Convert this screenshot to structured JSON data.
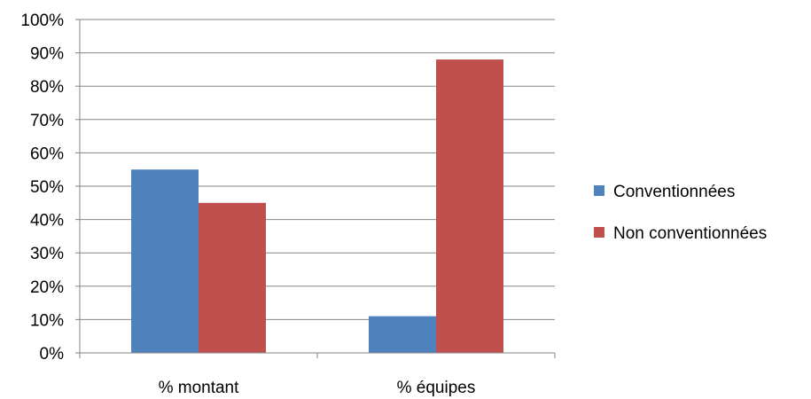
{
  "chart_data": {
    "type": "bar",
    "categories": [
      "% montant",
      "% équipes"
    ],
    "series": [
      {
        "name": "Conventionnées",
        "values": [
          55,
          11
        ],
        "color": "#4f81bd"
      },
      {
        "name": "Non conventionnées",
        "values": [
          45,
          88
        ],
        "color": "#c0504d"
      }
    ],
    "yticks": [
      "0%",
      "10%",
      "20%",
      "30%",
      "40%",
      "50%",
      "60%",
      "70%",
      "80%",
      "90%",
      "100%"
    ],
    "ylim": [
      0,
      100
    ],
    "grid": true,
    "legend": "right",
    "title": "",
    "xlabel": "",
    "ylabel": ""
  }
}
